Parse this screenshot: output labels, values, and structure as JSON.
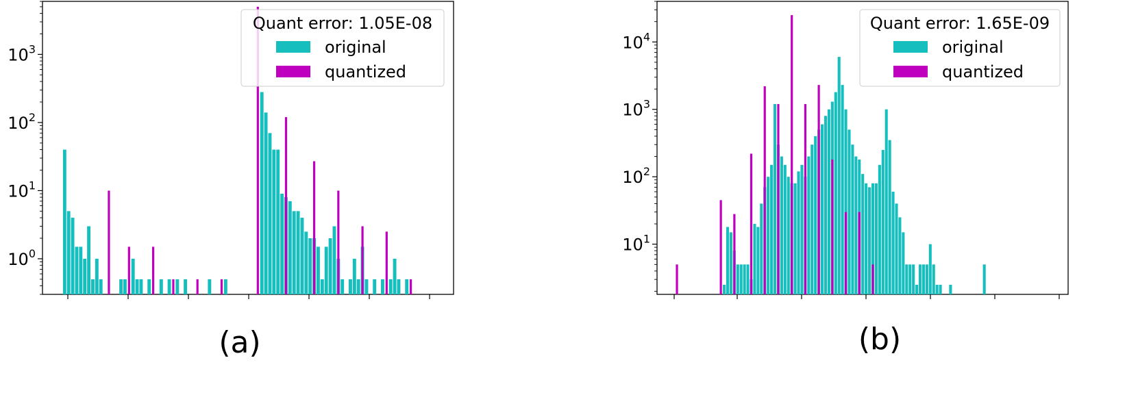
{
  "chart_data": [
    {
      "type": "bar",
      "caption": "(a)",
      "yscale": "log",
      "ylim": [
        0.3,
        6000
      ],
      "yticks": [
        {
          "base": "10",
          "exp": "0",
          "value": 1
        },
        {
          "base": "10",
          "exp": "1",
          "value": 10
        },
        {
          "base": "10",
          "exp": "2",
          "value": 100
        },
        {
          "base": "10",
          "exp": "3",
          "value": 1000
        }
      ],
      "legend": {
        "title": "Quant error: 1.05E-08",
        "placement": "top-right",
        "entries": [
          {
            "label": "original",
            "color": "#17bebe"
          },
          {
            "label": "quantized",
            "color": "#bf00bf"
          }
        ]
      },
      "series": [
        {
          "name": "original",
          "color": "#17bebe",
          "bins": [
            [
              1,
              40
            ],
            [
              2,
              5
            ],
            [
              3,
              4
            ],
            [
              4,
              1.5
            ],
            [
              5,
              1.5
            ],
            [
              6,
              1
            ],
            [
              7,
              3
            ],
            [
              8,
              0.5
            ],
            [
              9,
              1
            ],
            [
              10,
              0.5
            ],
            [
              15,
              0.5
            ],
            [
              16,
              0.5
            ],
            [
              18,
              1
            ],
            [
              19,
              0.5
            ],
            [
              20,
              0.5
            ],
            [
              22,
              0.5
            ],
            [
              25,
              0.5
            ],
            [
              27,
              0.5
            ],
            [
              29,
              0.5
            ],
            [
              31,
              0.5
            ],
            [
              37,
              0.5
            ],
            [
              41,
              0.5
            ],
            [
              50,
              280
            ],
            [
              51,
              140
            ],
            [
              52,
              70
            ],
            [
              53,
              40
            ],
            [
              54,
              40
            ],
            [
              55,
              9
            ],
            [
              56,
              8
            ],
            [
              57,
              7
            ],
            [
              58,
              5
            ],
            [
              59,
              5
            ],
            [
              60,
              4
            ],
            [
              61,
              2.5
            ],
            [
              62,
              2
            ],
            [
              63,
              2
            ],
            [
              64,
              1.5
            ],
            [
              65,
              0.5
            ],
            [
              66,
              1.5
            ],
            [
              67,
              2
            ],
            [
              68,
              3
            ],
            [
              69,
              1
            ],
            [
              70,
              0.5
            ],
            [
              72,
              0.5
            ],
            [
              73,
              1
            ],
            [
              74,
              0.5
            ],
            [
              75,
              1.5
            ],
            [
              76,
              0.5
            ],
            [
              78,
              0.5
            ],
            [
              80,
              0.5
            ],
            [
              82,
              0.5
            ],
            [
              83,
              1
            ],
            [
              84,
              0.5
            ],
            [
              86,
              0.5
            ]
          ]
        },
        {
          "name": "quantized",
          "color": "#bf00bf",
          "bins": [
            [
              12,
              10
            ],
            [
              17,
              1.5
            ],
            [
              23,
              1.5
            ],
            [
              28,
              0.5
            ],
            [
              34,
              0.5
            ],
            [
              40,
              0.5
            ],
            [
              49,
              5000
            ],
            [
              56,
              120
            ],
            [
              63,
              27
            ],
            [
              69,
              10
            ],
            [
              75,
              3
            ],
            [
              81,
              2.5
            ],
            [
              87,
              0.5
            ]
          ]
        }
      ]
    },
    {
      "type": "bar",
      "caption": "(b)",
      "yscale": "log",
      "ylim": [
        1.8,
        40000
      ],
      "yticks": [
        {
          "base": "10",
          "exp": "1",
          "value": 10
        },
        {
          "base": "10",
          "exp": "2",
          "value": 100
        },
        {
          "base": "10",
          "exp": "3",
          "value": 1000
        },
        {
          "base": "10",
          "exp": "4",
          "value": 10000
        }
      ],
      "legend": {
        "title": "Quant error: 1.65E-09",
        "placement": "top-right",
        "entries": [
          {
            "label": "original",
            "color": "#17bebe"
          },
          {
            "label": "quantized",
            "color": "#bf00bf"
          }
        ]
      },
      "series": [
        {
          "name": "original",
          "color": "#17bebe",
          "bins": [
            [
              14,
              2.5
            ],
            [
              15,
              18
            ],
            [
              16,
              15
            ],
            [
              17,
              8
            ],
            [
              18,
              5
            ],
            [
              19,
              5
            ],
            [
              20,
              5
            ],
            [
              21,
              5
            ],
            [
              22,
              3
            ],
            [
              23,
              20
            ],
            [
              24,
              18
            ],
            [
              25,
              40
            ],
            [
              26,
              70
            ],
            [
              27,
              100
            ],
            [
              28,
              150
            ],
            [
              29,
              1200
            ],
            [
              30,
              300
            ],
            [
              31,
              200
            ],
            [
              32,
              150
            ],
            [
              33,
              100
            ],
            [
              34,
              80
            ],
            [
              35,
              80
            ],
            [
              36,
              120
            ],
            [
              37,
              150
            ],
            [
              38,
              100
            ],
            [
              39,
              200
            ],
            [
              40,
              300
            ],
            [
              41,
              400
            ],
            [
              42,
              500
            ],
            [
              43,
              600
            ],
            [
              44,
              800
            ],
            [
              45,
              1000
            ],
            [
              46,
              1300
            ],
            [
              47,
              1800
            ],
            [
              48,
              6000
            ],
            [
              49,
              2300
            ],
            [
              50,
              1000
            ],
            [
              51,
              500
            ],
            [
              52,
              300
            ],
            [
              53,
              200
            ],
            [
              54,
              180
            ],
            [
              55,
              110
            ],
            [
              56,
              80
            ],
            [
              57,
              70
            ],
            [
              58,
              80
            ],
            [
              59,
              80
            ],
            [
              60,
              150
            ],
            [
              61,
              250
            ],
            [
              62,
              1000
            ],
            [
              63,
              350
            ],
            [
              64,
              60
            ],
            [
              65,
              40
            ],
            [
              66,
              25
            ],
            [
              67,
              15
            ],
            [
              68,
              5
            ],
            [
              69,
              5
            ],
            [
              70,
              5
            ],
            [
              71,
              2.5
            ],
            [
              72,
              5
            ],
            [
              73,
              5
            ],
            [
              74,
              5
            ],
            [
              75,
              10
            ],
            [
              76,
              5
            ],
            [
              77,
              2.5
            ],
            [
              78,
              2.5
            ],
            [
              81,
              2.5
            ],
            [
              91,
              5
            ]
          ]
        },
        {
          "name": "quantized",
          "color": "#bf00bf",
          "bins": [
            [
              0,
              5
            ],
            [
              13,
              45
            ],
            [
              17,
              28
            ],
            [
              22,
              220
            ],
            [
              26,
              2200
            ],
            [
              30,
              1200
            ],
            [
              34,
              25000
            ],
            [
              38,
              1200
            ],
            [
              42,
              2300
            ],
            [
              46,
              180
            ],
            [
              50,
              30
            ],
            [
              54,
              30
            ],
            [
              58,
              5
            ]
          ]
        }
      ]
    }
  ]
}
